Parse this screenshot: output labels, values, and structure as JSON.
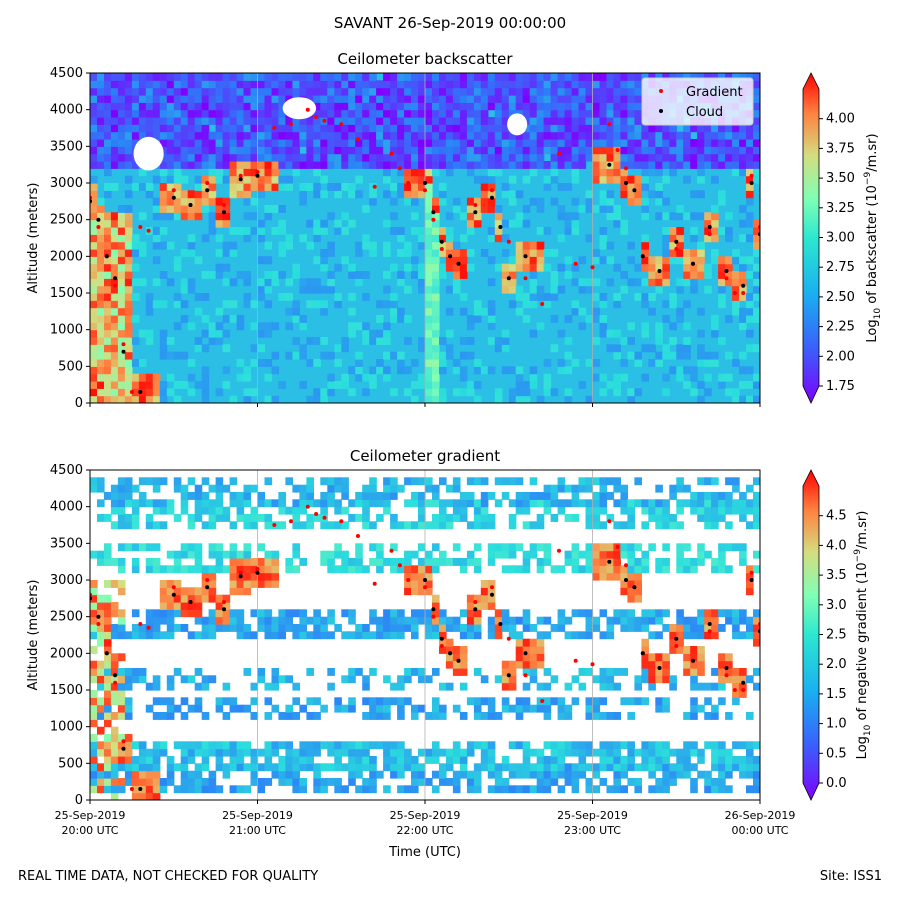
{
  "figure": {
    "suptitle": "SAVANT 26-Sep-2019 00:00:00",
    "footer_left": "REAL TIME DATA, NOT CHECKED FOR QUALITY",
    "footer_right": "Site: ISS1"
  },
  "colors": {
    "gradient_marker": "#ff0000",
    "cloud_marker": "#000000",
    "rainbow_colormap": [
      "#7f00ff",
      "#2c7ef8",
      "#2adddd",
      "#80ffb4",
      "#d4dd80",
      "#ff8040",
      "#ff0000"
    ]
  },
  "chart_data": [
    {
      "type": "heatmap",
      "title": "Ceilometer backscatter",
      "ylabel": "Altitude (meters)",
      "xlabel": "",
      "ylim": [
        0,
        4500
      ],
      "yticks": [
        0,
        500,
        1000,
        1500,
        2000,
        2500,
        3000,
        3500,
        4000,
        4500
      ],
      "xticks_hours_utc": [
        20,
        21,
        22,
        23,
        24
      ],
      "show_x_tick_labels": false,
      "grid": "vertical lines at each hour",
      "legend": {
        "placement": "top-right",
        "entries": [
          {
            "label": "Gradient",
            "marker": "red dot"
          },
          {
            "label": "Cloud",
            "marker": "black dot"
          }
        ]
      },
      "colorbar": {
        "label_prefix": "Log",
        "label_sub": "10",
        "label_main": " of backscatter (10",
        "label_sup": "−9",
        "label_suffix": "/m.sr)",
        "range": [
          1.75,
          4.25
        ],
        "extend": "both",
        "ticks": [
          "1.75",
          "2.00",
          "2.25",
          "2.50",
          "2.75",
          "3.00",
          "3.25",
          "3.50",
          "3.75",
          "4.00"
        ]
      },
      "background_level": 2.45
    },
    {
      "type": "heatmap",
      "title": "Ceilometer gradient",
      "ylabel": "Altitude (meters)",
      "xlabel": "Time (UTC)",
      "ylim": [
        0,
        4500
      ],
      "yticks": [
        0,
        500,
        1000,
        1500,
        2000,
        2500,
        3000,
        3500,
        4000,
        4500
      ],
      "xticks_hours_utc": [
        20,
        21,
        22,
        23,
        24
      ],
      "xtick_labels": [
        [
          "25-Sep-2019",
          "20:00 UTC"
        ],
        [
          "25-Sep-2019",
          "21:00 UTC"
        ],
        [
          "25-Sep-2019",
          "22:00 UTC"
        ],
        [
          "25-Sep-2019",
          "23:00 UTC"
        ],
        [
          "26-Sep-2019",
          "00:00 UTC"
        ]
      ],
      "show_x_tick_labels": true,
      "grid": "vertical lines at each hour",
      "colorbar": {
        "label_prefix": "Log",
        "label_sub": "10",
        "label_main": " of negative gradient (10",
        "label_sup": "−9",
        "label_suffix": "/m.sr)",
        "range": [
          0,
          5
        ],
        "extend": "both",
        "ticks": [
          "0.0",
          "0.5",
          "1.0",
          "1.5",
          "2.0",
          "2.5",
          "3.0",
          "3.5",
          "4.0",
          "4.5"
        ]
      }
    }
  ],
  "series": {
    "cloud_base": {
      "name": "Cloud",
      "x_hours_utc": [
        20.0,
        20.05,
        20.1,
        20.15,
        20.2,
        20.3,
        20.5,
        20.6,
        20.7,
        20.8,
        20.9,
        21.0,
        21.1,
        21.4,
        21.6,
        21.8,
        21.9,
        22.0,
        22.05,
        22.1,
        22.15,
        22.2,
        22.3,
        22.4,
        22.45,
        22.5,
        22.6,
        22.8,
        23.0,
        23.1,
        23.2,
        23.25,
        23.3,
        23.4,
        23.5,
        23.6,
        23.7,
        23.8,
        23.9,
        23.95,
        24.0
      ],
      "altitude_m": [
        2750,
        2500,
        2000,
        1700,
        700,
        150,
        2800,
        2700,
        2900,
        2600,
        3050,
        3100,
        null,
        null,
        null,
        null,
        null,
        3000,
        2600,
        2200,
        2000,
        1900,
        2600,
        2800,
        2400,
        1700,
        2000,
        null,
        null,
        3250,
        3000,
        2900,
        2000,
        1800,
        2200,
        1900,
        2400,
        1800,
        1600,
        3000,
        2300
      ]
    },
    "gradient_points": {
      "name": "Gradient",
      "x_hours_utc": [
        20.0,
        20.05,
        20.1,
        20.15,
        20.2,
        20.25,
        20.3,
        20.35,
        20.5,
        20.6,
        20.7,
        20.8,
        20.9,
        21.0,
        21.1,
        21.2,
        21.3,
        21.35,
        21.4,
        21.5,
        21.6,
        21.7,
        21.8,
        21.85,
        21.9,
        22.0,
        22.05,
        22.1,
        22.15,
        22.2,
        22.3,
        22.4,
        22.5,
        22.6,
        22.7,
        22.8,
        22.9,
        23.0,
        23.1,
        23.15,
        23.2,
        23.3,
        23.4,
        23.5,
        23.6,
        23.7,
        23.8,
        23.85,
        23.9,
        23.95,
        24.0
      ],
      "altitude_m": [
        2800,
        2400,
        2000,
        1600,
        800,
        150,
        2400,
        2350,
        2900,
        2700,
        3000,
        2700,
        3100,
        3150,
        3750,
        3800,
        4000,
        3900,
        3850,
        3800,
        3600,
        2950,
        3400,
        3200,
        3000,
        2900,
        2500,
        2100,
        2000,
        1900,
        2700,
        2900,
        2200,
        1700,
        1350,
        3400,
        1900,
        1850,
        3800,
        3450,
        3200,
        2000,
        1800,
        2100,
        1900,
        2300,
        1700,
        1500,
        1500,
        3100,
        2400
      ]
    }
  }
}
